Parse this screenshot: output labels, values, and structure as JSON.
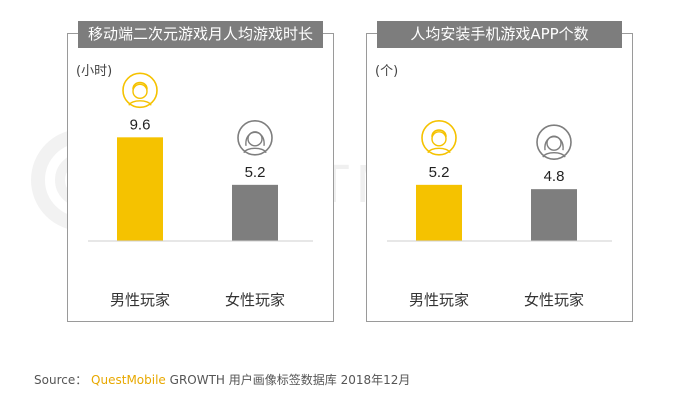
{
  "chart_data": [
    {
      "type": "bar",
      "title": "移动端二次元游戏月人均游戏时长",
      "unit_label": "(小时)",
      "categories": [
        "男性玩家",
        "女性玩家"
      ],
      "values": [
        9.6,
        5.2
      ],
      "value_labels": [
        "9.6",
        "5.2"
      ],
      "colors": [
        "#f5c200",
        "#7e7e7e"
      ],
      "ylim": [
        0,
        10
      ]
    },
    {
      "type": "bar",
      "title": "人均安装手机游戏APP个数",
      "unit_label": "(个)",
      "categories": [
        "男性玩家",
        "女性玩家"
      ],
      "values": [
        5.2,
        4.8
      ],
      "value_labels": [
        "5.2",
        "4.8"
      ],
      "colors": [
        "#f5c200",
        "#7e7e7e"
      ],
      "ylim": [
        0,
        10
      ]
    }
  ],
  "watermark": "QUESTMOBILE",
  "source": {
    "prefix": "Source：",
    "brand": "QuestMobile",
    "rest": "GROWTH 用户画像标签数据库 2018年12月"
  }
}
